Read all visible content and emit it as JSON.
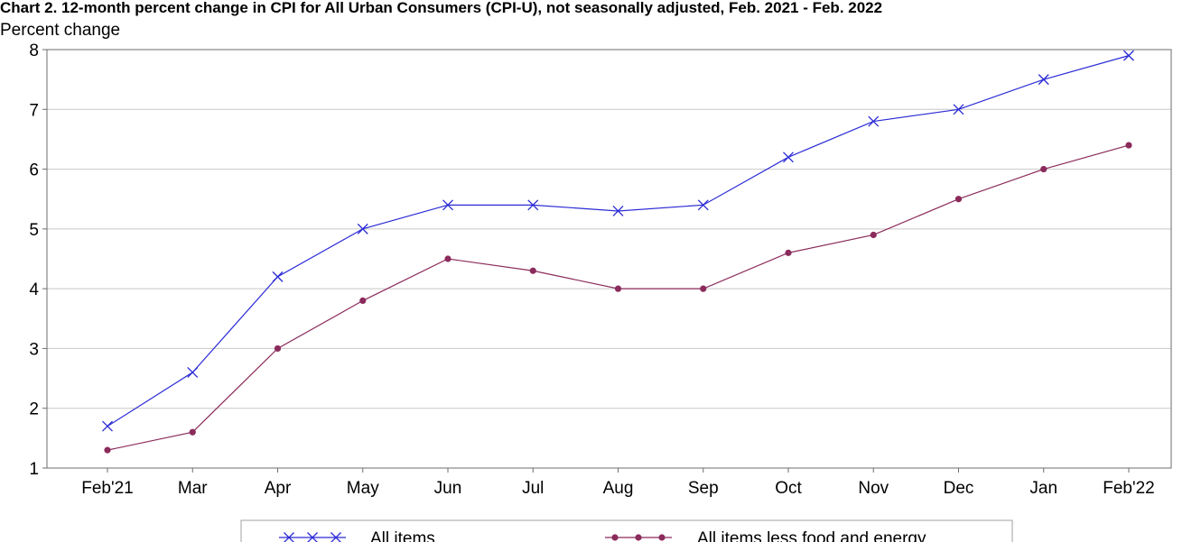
{
  "chart_data": {
    "type": "line",
    "title": "Chart 2. 12-month percent change in CPI for All Urban Consumers (CPI-U), not seasonally adjusted, Feb. 2021 - Feb. 2022",
    "ylabel": "Percent change",
    "xlabel": "",
    "ylim": [
      1,
      8
    ],
    "yticks": [
      "1",
      "2",
      "3",
      "4",
      "5",
      "6",
      "7",
      "8"
    ],
    "categories": [
      "Feb'21",
      "Mar",
      "Apr",
      "May",
      "Jun",
      "Jul",
      "Aug",
      "Sep",
      "Oct",
      "Nov",
      "Dec",
      "Jan",
      "Feb'22"
    ],
    "grid": "horizontal",
    "legend_position": "bottom",
    "series": [
      {
        "name": "All items",
        "color": "#2b2bd6",
        "marker": "x",
        "values": [
          1.7,
          2.6,
          4.2,
          5.0,
          5.4,
          5.4,
          5.3,
          5.4,
          6.2,
          6.8,
          7.0,
          7.5,
          7.9
        ]
      },
      {
        "name": "All items less food and energy",
        "color": "#8b2b5b",
        "marker": "circle",
        "values": [
          1.3,
          1.6,
          3.0,
          3.8,
          4.5,
          4.3,
          4.0,
          4.0,
          4.6,
          4.9,
          5.5,
          6.0,
          6.4
        ]
      }
    ]
  }
}
